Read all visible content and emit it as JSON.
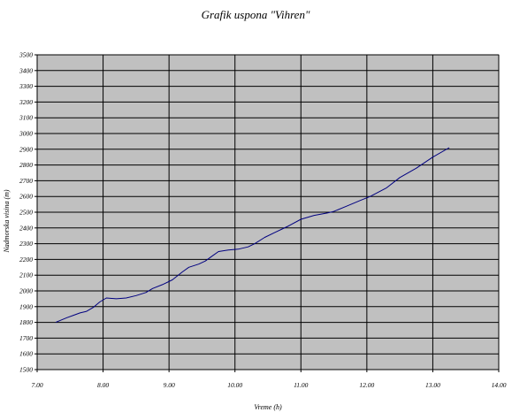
{
  "chart_data": {
    "type": "line",
    "title": "Grafik uspona \"Vihren\"",
    "xlabel": "Vreme (h)",
    "ylabel": "Nadmorska visina (m)",
    "xlim": [
      7.0,
      14.0
    ],
    "ylim": [
      1500,
      3500
    ],
    "x_ticks": [
      "7.00",
      "8.00",
      "9.00",
      "10.00",
      "11.00",
      "12.00",
      "13.00",
      "14.00"
    ],
    "y_ticks": [
      "1500",
      "1600",
      "1700",
      "1800",
      "1900",
      "2000",
      "2100",
      "2200",
      "2300",
      "2400",
      "2500",
      "2600",
      "2700",
      "2800",
      "2900",
      "3000",
      "3100",
      "3200",
      "3300",
      "3400",
      "3500"
    ],
    "grid": true,
    "plot_background": "#c0c0c0",
    "series": [
      {
        "color": "#000080",
        "x": [
          7.28,
          7.45,
          7.55,
          7.65,
          7.75,
          7.85,
          7.95,
          8.05,
          8.2,
          8.35,
          8.5,
          8.65,
          8.75,
          8.9,
          9.05,
          9.2,
          9.3,
          9.45,
          9.55,
          9.65,
          9.75,
          9.9,
          10.05,
          10.2,
          10.3,
          10.45,
          10.6,
          10.8,
          11.0,
          11.2,
          11.4,
          11.5,
          11.7,
          11.9,
          12.05,
          12.3,
          12.5,
          12.75,
          13.0,
          13.25
        ],
        "y": [
          1800,
          1830,
          1845,
          1860,
          1870,
          1895,
          1930,
          1955,
          1950,
          1955,
          1970,
          1990,
          2015,
          2040,
          2070,
          2120,
          2150,
          2170,
          2190,
          2220,
          2250,
          2260,
          2265,
          2280,
          2300,
          2340,
          2370,
          2410,
          2455,
          2480,
          2495,
          2505,
          2540,
          2575,
          2600,
          2655,
          2720,
          2780,
          2850,
          2910
        ]
      }
    ]
  }
}
